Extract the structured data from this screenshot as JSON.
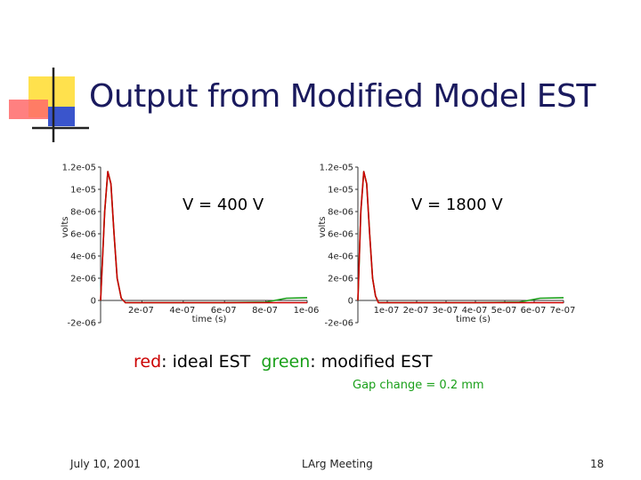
{
  "slide": {
    "title": "Output from Modified Model EST",
    "legend": {
      "red_word": "red",
      "red_rest": ": ideal EST",
      "green_word": "green",
      "green_rest": ": modified EST"
    },
    "gap_note": "Gap change = 0.2 mm",
    "footer": {
      "date": "July 10, 2001",
      "meeting": "LArg Meeting",
      "page": "18"
    }
  },
  "colors": {
    "ideal": "#cc0000",
    "modified": "#1aa01a",
    "title": "#1a1a5e"
  },
  "chart_data": [
    {
      "type": "line",
      "title": "V = 400 V",
      "xlabel": "time (s)",
      "ylabel": "volts",
      "xlim": [
        0,
        1e-06
      ],
      "ylim": [
        -2e-06,
        1.2e-05
      ],
      "y_ticks": [
        "1.2e-05",
        "1e-05",
        "8e-06",
        "6e-06",
        "4e-06",
        "2e-06",
        "0",
        "-2e-06"
      ],
      "x_ticks": [
        "2e-07",
        "4e-07",
        "6e-07",
        "8e-07",
        "1e-06"
      ],
      "series": [
        {
          "name": "red",
          "color": "#cc0000",
          "x": [
            0,
            2e-08,
            3.5e-08,
            5e-08,
            6.5e-08,
            8e-08,
            1e-07,
            1.2e-07,
            1.5e-07,
            2e-07,
            4e-07,
            6e-07,
            8e-07,
            1e-06
          ],
          "y": [
            0,
            8e-06,
            1.16e-05,
            1.05e-05,
            6e-06,
            2e-06,
            2e-07,
            -2e-07,
            -2e-07,
            -2e-07,
            -2e-07,
            -2e-07,
            -2e-07,
            -2e-07
          ]
        },
        {
          "name": "green",
          "color": "#1aa01a",
          "x": [
            0,
            2e-08,
            3.5e-08,
            5e-08,
            6.5e-08,
            8e-08,
            1e-07,
            1.2e-07,
            1.5e-07,
            2e-07,
            4e-07,
            6e-07,
            8e-07,
            9e-07,
            1e-06
          ],
          "y": [
            0,
            8e-06,
            1.16e-05,
            1.05e-05,
            6e-06,
            2e-06,
            2e-07,
            -2e-07,
            -2e-07,
            -2e-07,
            -2e-07,
            -2e-07,
            -1.5e-07,
            2e-07,
            2.5e-07
          ]
        }
      ]
    },
    {
      "type": "line",
      "title": "V = 1800 V",
      "xlabel": "time (s)",
      "ylabel": "volts",
      "xlim": [
        0,
        7e-07
      ],
      "ylim": [
        -2e-06,
        1.2e-05
      ],
      "y_ticks": [
        "1.2e-05",
        "1e-05",
        "8e-06",
        "6e-06",
        "4e-06",
        "2e-06",
        "0",
        "-2e-06"
      ],
      "x_ticks": [
        "1e-07",
        "2e-07",
        "3e-07",
        "4e-07",
        "5e-07",
        "6e-07",
        "7e-07"
      ],
      "series": [
        {
          "name": "red",
          "color": "#cc0000",
          "x": [
            0,
            1e-08,
            2e-08,
            3e-08,
            4e-08,
            5e-08,
            6e-08,
            7e-08,
            9e-08,
            1.2e-07,
            2e-07,
            4e-07,
            6e-07,
            7e-07
          ],
          "y": [
            0,
            8e-06,
            1.16e-05,
            1.05e-05,
            6e-06,
            2e-06,
            4e-07,
            -2e-07,
            -2e-07,
            -2e-07,
            -2e-07,
            -2e-07,
            -2e-07,
            -2e-07
          ]
        },
        {
          "name": "green",
          "color": "#1aa01a",
          "x": [
            0,
            1e-08,
            2e-08,
            3e-08,
            4e-08,
            5e-08,
            6e-08,
            7e-08,
            9e-08,
            1.2e-07,
            2e-07,
            4e-07,
            5.5e-07,
            6.2e-07,
            7e-07
          ],
          "y": [
            0,
            8e-06,
            1.16e-05,
            1.05e-05,
            6e-06,
            2e-06,
            4e-07,
            -2e-07,
            -2e-07,
            -2e-07,
            -2e-07,
            -2e-07,
            -1.5e-07,
            2e-07,
            2.5e-07
          ]
        }
      ]
    }
  ]
}
